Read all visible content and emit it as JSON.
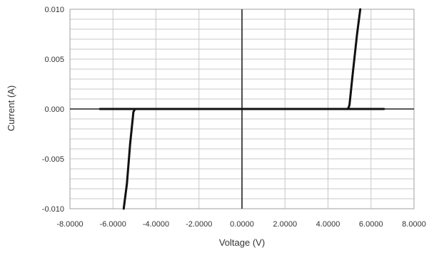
{
  "chart_data": {
    "type": "line",
    "title": "",
    "xlabel": "Voltage (V)",
    "ylabel": "Current (A)",
    "xlim": [
      -8,
      8
    ],
    "ylim": [
      -0.01,
      0.01
    ],
    "x_ticks": [
      -8,
      -6,
      -4,
      -2,
      0,
      2,
      4,
      6,
      8
    ],
    "x_tick_labels": [
      "-8.0000",
      "-6.0000",
      "-4.0000",
      "-2.0000",
      "0.0000",
      "2.0000",
      "4.0000",
      "6.0000",
      "8.0000"
    ],
    "y_ticks": [
      -0.01,
      -0.005,
      0,
      0.005,
      0.01
    ],
    "y_tick_labels": [
      "-0.010",
      "-0.005",
      "0.000",
      "0.005",
      "0.010"
    ],
    "grid": true,
    "legend": "none",
    "colors": {
      "line": "#111111",
      "grid": "#c8c8c8",
      "axis": "#222222"
    },
    "series": [
      {
        "x": [
          -6.6,
          -6.0,
          -5.0,
          -5.0,
          -5.05,
          -5.2,
          -5.35,
          -5.5
        ],
        "y": [
          0.0,
          0.0,
          0.0,
          -0.0001,
          -0.0003,
          -0.0035,
          -0.0075,
          -0.01
        ]
      },
      {
        "x": [
          -5.5,
          -4.0,
          -2.0,
          0.0,
          2.0,
          4.0,
          5.0
        ],
        "y": [
          0.0,
          0.0,
          0.0,
          0.0,
          0.0,
          0.0,
          0.0
        ]
      },
      {
        "x": [
          5.0,
          6.0,
          6.6
        ],
        "y": [
          0.0,
          0.0,
          0.0
        ]
      },
      {
        "x": [
          4.9,
          4.95,
          5.0,
          5.15,
          5.35,
          5.5
        ],
        "y": [
          0.0,
          0.0001,
          0.0004,
          0.0035,
          0.0075,
          0.01
        ]
      }
    ]
  }
}
